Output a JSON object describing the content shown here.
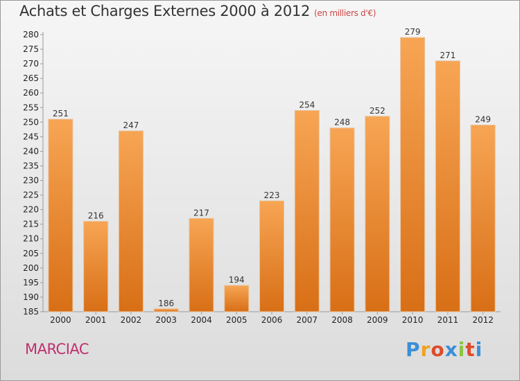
{
  "chart_data": {
    "type": "bar",
    "title": "Achats et Charges Externes 2000 à 2012",
    "subtitle": "(en milliers d'€)",
    "xlabel": "",
    "ylabel": "",
    "categories": [
      "2000",
      "2001",
      "2002",
      "2003",
      "2004",
      "2005",
      "2006",
      "2007",
      "2008",
      "2009",
      "2010",
      "2011",
      "2012"
    ],
    "values": [
      251,
      216,
      247,
      186,
      217,
      194,
      223,
      254,
      248,
      252,
      279,
      271,
      249
    ],
    "ylim": [
      185,
      280
    ],
    "yticks": [
      185,
      190,
      195,
      200,
      205,
      210,
      215,
      220,
      225,
      230,
      235,
      240,
      245,
      250,
      255,
      260,
      265,
      270,
      275,
      280
    ],
    "grid": false,
    "bar_color": "#f08a2c",
    "legend": "none"
  },
  "place_label": "MARCIAC",
  "logo": {
    "letters": [
      "P",
      "r",
      "o",
      "x",
      "i",
      "t",
      "i"
    ],
    "colors": [
      "#3b8fd6",
      "#f2a21e",
      "#e04b2a",
      "#3b8fd6",
      "#8bc53f",
      "#e04b2a",
      "#3b8fd6"
    ]
  }
}
